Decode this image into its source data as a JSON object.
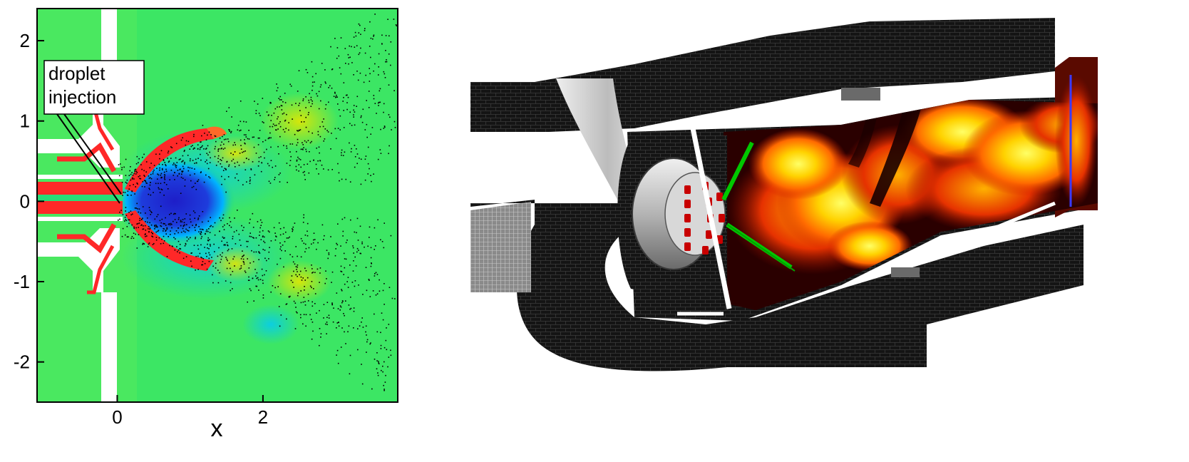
{
  "left_plot": {
    "x_axis_label": "x",
    "x_ticks": [
      {
        "label": "0",
        "value": 0
      },
      {
        "label": "2",
        "value": 2
      }
    ],
    "y_ticks": [
      {
        "label": "2",
        "value": 2
      },
      {
        "label": "1",
        "value": 1
      },
      {
        "label": "0",
        "value": 0
      },
      {
        "label": "-1",
        "value": -1
      },
      {
        "label": "-2",
        "value": -2
      }
    ],
    "xlim": [
      -1.1,
      3.85
    ],
    "ylim": [
      -2.5,
      2.4
    ],
    "annotation": {
      "line1": "droplet",
      "line2": "injection"
    },
    "colormap": [
      "#1e1ec8",
      "#00c8ff",
      "#28dc78",
      "#e6e600",
      "#ff2828"
    ]
  },
  "right_render": {
    "flame_colors": [
      "#3a0000",
      "#cc1a00",
      "#ff6a00",
      "#ffd200",
      "#ffff66"
    ],
    "spray_color": "#00c800",
    "mesh_color": "#1a1a1a"
  }
}
